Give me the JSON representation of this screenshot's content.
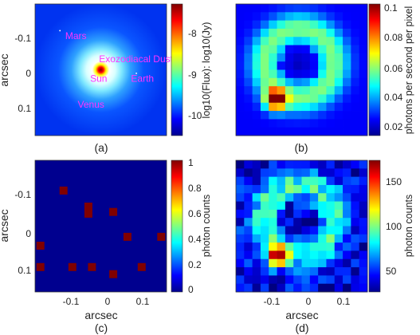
{
  "chart_data": [
    {
      "type": "heatmap",
      "panel_label": "(a)",
      "ylabel": "arcsec",
      "yticks": [
        "-0.1",
        "0",
        "0.1"
      ],
      "colorbar": {
        "label": "log10(Flux): log10(Jy)",
        "ticks": [
          "-8",
          "-9",
          "-10"
        ]
      },
      "annotations": [
        {
          "text": "Mars",
          "x": -0.115,
          "y": -0.11
        },
        {
          "text": "Exozodiacal Dust",
          "x": -0.02,
          "y": -0.045
        },
        {
          "text": "Sun",
          "x": -0.045,
          "y": 0.01
        },
        {
          "text": "Earth",
          "x": 0.07,
          "y": 0.01
        },
        {
          "text": "Venus",
          "x": -0.08,
          "y": 0.083
        }
      ]
    },
    {
      "type": "heatmap",
      "panel_label": "(b)",
      "colorbar": {
        "label": "photons per second per pixel",
        "ticks": [
          "0.1",
          "0.08",
          "0.06",
          "0.04",
          "0.02"
        ]
      }
    },
    {
      "type": "heatmap",
      "panel_label": "(c)",
      "xlabel": "arcsec",
      "ylabel": "arcsec",
      "xticks": [
        "-0.1",
        "0",
        "0.1"
      ],
      "yticks": [
        "-0.1",
        "0",
        "0.1"
      ],
      "colorbar": {
        "label": "photon counts",
        "ticks": [
          "1",
          "0.8",
          "0.6",
          "0.4",
          "0.2",
          "0"
        ]
      },
      "events": [
        {
          "x": -0.12,
          "y": -0.115
        },
        {
          "x": -0.05,
          "y": -0.07
        },
        {
          "x": -0.05,
          "y": -0.05
        },
        {
          "x": 0.02,
          "y": -0.055
        },
        {
          "x": 0.06,
          "y": 0.015
        },
        {
          "x": 0.155,
          "y": 0.015
        },
        {
          "x": -0.185,
          "y": 0.04
        },
        {
          "x": -0.185,
          "y": 0.1
        },
        {
          "x": -0.095,
          "y": 0.1
        },
        {
          "x": -0.04,
          "y": 0.1
        },
        {
          "x": 0.1,
          "y": 0.1
        },
        {
          "x": 0.02,
          "y": 0.12
        }
      ]
    },
    {
      "type": "heatmap",
      "panel_label": "(d)",
      "xlabel": "arcsec",
      "xticks": [
        "-0.1",
        "0",
        "0.1"
      ],
      "colorbar": {
        "label": "photon counts",
        "ticks": [
          "150",
          "100",
          "50"
        ]
      }
    }
  ],
  "colors": {
    "background_low": "#00008f",
    "high": "#800000"
  }
}
